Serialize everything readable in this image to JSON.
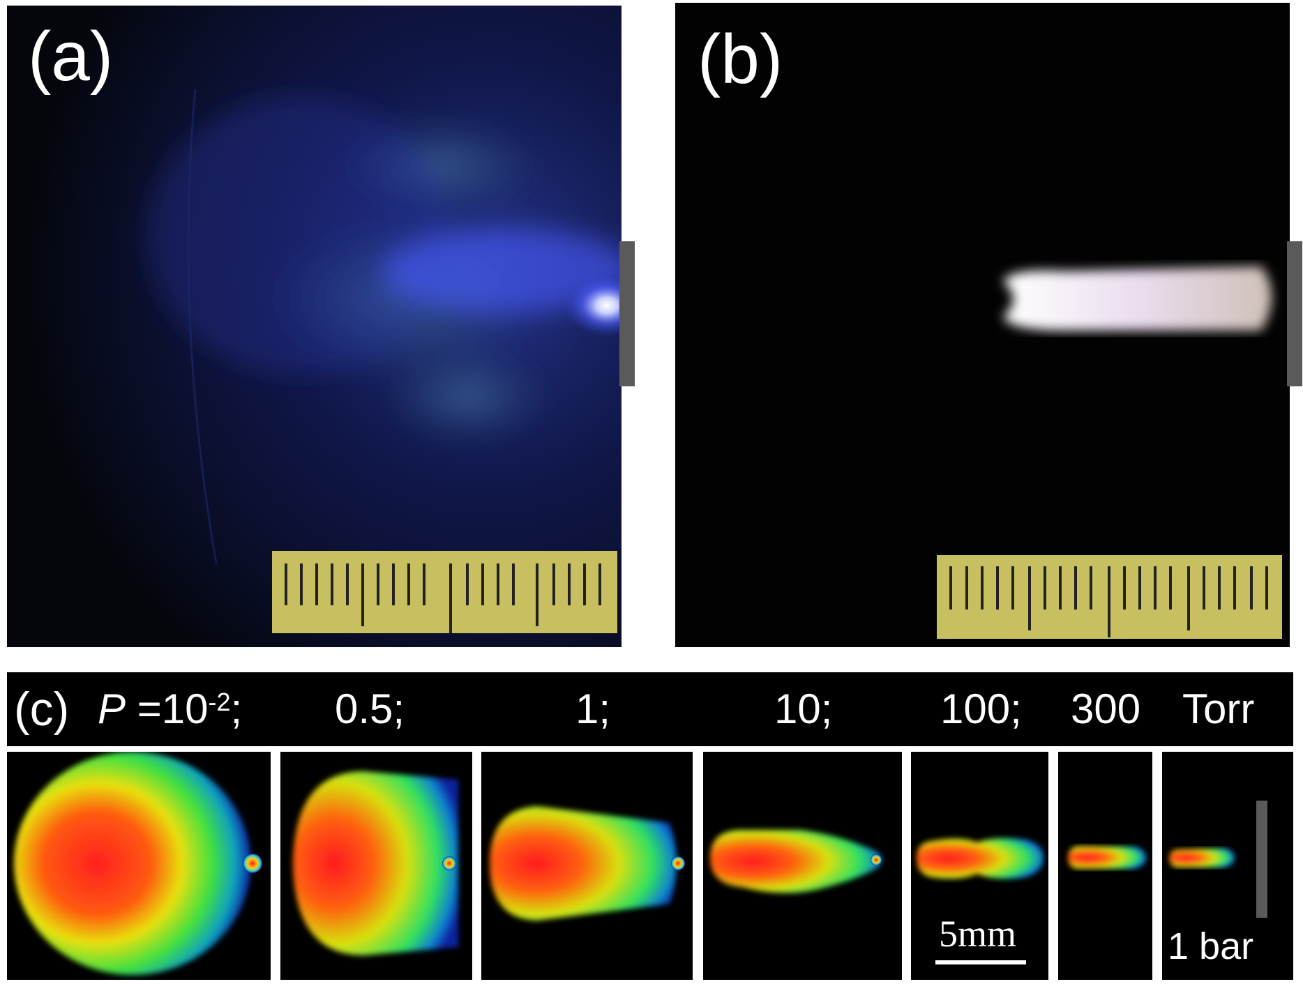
{
  "panels": {
    "a": {
      "label": "(a)"
    },
    "b": {
      "label": "(b)"
    },
    "c": {
      "label": "(c)",
      "pressure_symbol": "P",
      "equals": " =10",
      "exponent": "-2",
      "values": [
        "10^-2;",
        "0.5;",
        "1;",
        "10;",
        "100;",
        "300 Torr"
      ],
      "first_suffix": ";",
      "v2": "0.5;",
      "v3": "1;",
      "v4": "10;",
      "v5": "100;",
      "v6": "300",
      "unit": "Torr",
      "last_caption": "1 bar",
      "scale_bar": "5mm"
    }
  },
  "colors": {
    "background": "#000000",
    "frame": "#ffffff",
    "glow_blue": "#4a5cff",
    "ruler": "#c8c060",
    "electrode": "#5a5a5a"
  }
}
